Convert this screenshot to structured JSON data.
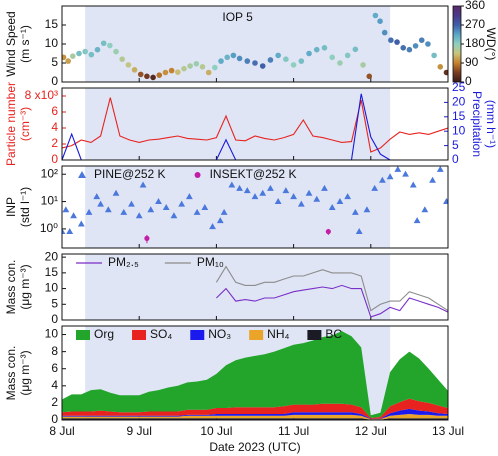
{
  "chart_data": [
    {
      "type": "scatter",
      "annotation": "IOP 5",
      "ylabel": [
        "Wind Speed",
        "(m s⁻¹)"
      ],
      "xlim": [
        8,
        13
      ],
      "ylim": [
        0,
        20
      ],
      "yticks": [
        0,
        5,
        10,
        15
      ],
      "highlight": [
        8.3,
        12.25
      ],
      "x": [
        8.02,
        8.08,
        8.14,
        8.22,
        8.3,
        8.38,
        8.46,
        8.54,
        8.62,
        8.7,
        8.78,
        8.86,
        8.94,
        9.02,
        9.1,
        9.18,
        9.26,
        9.34,
        9.42,
        9.5,
        9.58,
        9.66,
        9.74,
        9.82,
        9.9,
        9.98,
        10.06,
        10.14,
        10.22,
        10.3,
        10.4,
        10.5,
        10.6,
        10.7,
        10.8,
        10.9,
        11.0,
        11.1,
        11.2,
        11.3,
        11.4,
        11.5,
        11.6,
        11.7,
        11.8,
        11.9,
        11.98,
        12.06,
        12.12,
        12.18,
        12.26,
        12.34,
        12.42,
        12.5,
        12.58,
        12.66,
        12.74,
        12.82,
        12.9,
        12.98
      ],
      "values": [
        6.5,
        5.5,
        6.8,
        7.5,
        8.0,
        7.2,
        8.5,
        10.2,
        9.6,
        8.0,
        6.0,
        4.5,
        3.2,
        2.0,
        1.5,
        1.2,
        1.8,
        2.5,
        3.0,
        2.6,
        3.5,
        4.2,
        4.8,
        4.0,
        2.5,
        3.8,
        5.5,
        6.5,
        7.0,
        6.2,
        5.5,
        5.0,
        4.2,
        5.8,
        7.0,
        6.0,
        4.5,
        5.5,
        7.5,
        8.5,
        9.0,
        6.5,
        5.0,
        7.0,
        8.6,
        4.5,
        1.5,
        17.5,
        16.0,
        13.0,
        11.0,
        10.5,
        9.0,
        8.5,
        9.5,
        11.0,
        10.0,
        7.0,
        4.0,
        2.5
      ],
      "color_values": [
        100,
        110,
        160,
        200,
        190,
        200,
        210,
        200,
        180,
        170,
        150,
        140,
        120,
        60,
        40,
        20,
        80,
        100,
        90,
        130,
        150,
        160,
        170,
        150,
        120,
        180,
        220,
        210,
        230,
        240,
        250,
        260,
        270,
        250,
        220,
        190,
        180,
        200,
        220,
        210,
        200,
        180,
        170,
        190,
        200,
        160,
        60,
        220,
        230,
        240,
        260,
        270,
        260,
        250,
        240,
        250,
        240,
        200,
        100,
        30
      ],
      "colormap": [
        "#3a1a1a",
        "#7a3b22",
        "#c4822e",
        "#c9c47a",
        "#8fcfc0",
        "#5aa6c8",
        "#3f5fa8",
        "#4a3a8a",
        "#5a2a6a"
      ],
      "color_lim": [
        0,
        360
      ],
      "color_ticks": [
        0,
        90,
        180,
        270,
        360
      ],
      "color_label": "WD(°)"
    },
    {
      "type": "line",
      "ylabel": [
        "Particle number",
        "(cm⁻³)"
      ],
      "y2label": [
        "Precipitation",
        "(mm h⁻¹)"
      ],
      "xlim": [
        8,
        13
      ],
      "ylim": [
        0,
        9000
      ],
      "yticks": [
        0,
        {
          "value": 2000,
          "label": "2"
        },
        {
          "value": 4000,
          "label": "4"
        },
        {
          "value": 6000,
          "label": "6"
        },
        {
          "value": 8000,
          "label": "8 x10³"
        }
      ],
      "y2lim": [
        0,
        25
      ],
      "y2ticks": [
        0,
        5,
        10,
        15,
        20,
        25
      ],
      "highlight": [
        8.3,
        12.25
      ],
      "x": [
        8,
        8.125,
        8.25,
        8.375,
        8.5,
        8.625,
        8.75,
        8.875,
        9,
        9.125,
        9.25,
        9.375,
        9.5,
        9.625,
        9.75,
        9.875,
        10,
        10.125,
        10.25,
        10.375,
        10.5,
        10.625,
        10.75,
        10.875,
        11,
        11.125,
        11.25,
        11.375,
        11.5,
        11.625,
        11.75,
        11.875,
        12,
        12.125,
        12.25,
        12.375,
        12.5,
        12.625,
        12.75,
        12.875,
        13
      ],
      "series": [
        {
          "color": "#e8231f",
          "values": [
            1500,
            1800,
            2500,
            2200,
            3000,
            7800,
            3000,
            2500,
            2200,
            2500,
            2600,
            2800,
            3000,
            2700,
            2600,
            2500,
            2800,
            5500,
            2500,
            2400,
            3000,
            2700,
            2500,
            2800,
            3200,
            5000,
            3000,
            2800,
            2500,
            2200,
            2300,
            7500,
            1000,
            1500,
            2600,
            3500,
            3200,
            3400,
            3200,
            3600,
            4000
          ]
        },
        {
          "color": "#1a1adc",
          "axis": "y2",
          "values": [
            0,
            9,
            0,
            0,
            0,
            0,
            0,
            0,
            0,
            0,
            0,
            0,
            0,
            0,
            0,
            0,
            0,
            7,
            0,
            0,
            0,
            0,
            0,
            0,
            0,
            0,
            0,
            0,
            0,
            0,
            0,
            23,
            8,
            2,
            0,
            0,
            0,
            0,
            0,
            0,
            0
          ]
        }
      ]
    },
    {
      "type": "scatter",
      "ylabel": [
        "INP",
        "(std l⁻¹)"
      ],
      "log_y": true,
      "legend": true,
      "xlim": [
        8,
        13
      ],
      "ylim": [
        0.2,
        200
      ],
      "yticks": [
        {
          "value": 1,
          "label": "10⁰"
        },
        {
          "value": 10,
          "label": "10¹"
        },
        {
          "value": 100,
          "label": "10²"
        }
      ],
      "highlight": [
        8.3,
        12.25
      ],
      "series": [
        {
          "name": "PINE@252 K",
          "color": "#4b78dc",
          "marker": "triangle",
          "x": [
            8.0,
            8.05,
            8.1,
            8.15,
            8.25,
            8.35,
            8.45,
            8.5,
            8.6,
            8.7,
            8.8,
            8.9,
            9.0,
            9.05,
            9.15,
            9.25,
            9.35,
            9.45,
            9.55,
            9.65,
            9.75,
            9.85,
            9.95,
            10.05,
            10.1,
            10.2,
            10.3,
            10.4,
            10.5,
            10.6,
            10.7,
            10.8,
            10.9,
            11.0,
            11.1,
            11.2,
            11.3,
            11.4,
            11.5,
            11.6,
            11.7,
            11.8,
            11.85,
            11.95,
            12.05,
            12.15,
            12.25,
            12.35,
            12.45,
            12.55,
            12.6,
            12.7,
            12.8,
            12.9,
            12.98
          ],
          "values": [
            0.8,
            5,
            0.8,
            3,
            1.5,
            4,
            15,
            8,
            5,
            20,
            4,
            8,
            3,
            40,
            5,
            10,
            6,
            3,
            8,
            15,
            4,
            6,
            1.2,
            2,
            4,
            40,
            30,
            25,
            15,
            20,
            30,
            10,
            25,
            15,
            8,
            20,
            12,
            30,
            6,
            10,
            15,
            4,
            0.8,
            5,
            30,
            60,
            80,
            150,
            100,
            40,
            2,
            5,
            60,
            150,
            10
          ]
        },
        {
          "name": "INSEKT@252 K",
          "color": "#c21fa6",
          "marker": "circle",
          "x": [
            9.1,
            11.45
          ],
          "values": [
            0.45,
            0.8
          ],
          "errors": [
            0.15,
            0.2
          ]
        }
      ]
    },
    {
      "type": "line",
      "ylabel": [
        "Mass con.",
        "(μg m⁻³)"
      ],
      "legend": true,
      "xlim": [
        8,
        13
      ],
      "ylim": [
        0,
        21
      ],
      "yticks": [
        0,
        5,
        10,
        15,
        20
      ],
      "highlight": [
        8.3,
        12.25
      ],
      "x": [
        8,
        8.125,
        8.25,
        8.375,
        8.5,
        8.625,
        8.75,
        8.875,
        9,
        9.125,
        9.25,
        9.375,
        9.5,
        9.625,
        9.75,
        9.875,
        10,
        10.125,
        10.25,
        10.375,
        10.5,
        10.625,
        10.75,
        10.875,
        11,
        11.125,
        11.25,
        11.375,
        11.5,
        11.625,
        11.75,
        11.875,
        12,
        12.125,
        12.25,
        12.375,
        12.5,
        12.625,
        12.75,
        12.875,
        13
      ],
      "series": [
        {
          "name": "PM₂.₅",
          "color": "#7a2fc8",
          "values": [
            null,
            null,
            null,
            null,
            null,
            null,
            null,
            null,
            null,
            null,
            null,
            null,
            null,
            null,
            null,
            null,
            7,
            10,
            6,
            6.5,
            6,
            7,
            7,
            8,
            9,
            9.5,
            10,
            10.5,
            10,
            11,
            10,
            10,
            1,
            2,
            4,
            3,
            7,
            6,
            5,
            4,
            2.5
          ]
        },
        {
          "name": "PM₁₀",
          "color": "#8c8c8c",
          "values": [
            null,
            null,
            null,
            null,
            null,
            null,
            null,
            null,
            null,
            null,
            null,
            null,
            null,
            null,
            null,
            null,
            12,
            17,
            12,
            11,
            11,
            12,
            12,
            13,
            14,
            14,
            15,
            16,
            15,
            15,
            15,
            14,
            3,
            5,
            6,
            6,
            9,
            8,
            7,
            5,
            3
          ]
        }
      ]
    },
    {
      "type": "stacked_area",
      "ylabel": [
        "Mass con.",
        "(μg m⁻³)"
      ],
      "xlabel": "Date 2023 (UTC)",
      "legend": true,
      "xlim": [
        8,
        13
      ],
      "ylim": [
        0,
        11
      ],
      "yticks": [
        0,
        2,
        4,
        6,
        8,
        10
      ],
      "highlight": [
        8.3,
        12.25
      ],
      "xticks": [
        {
          "value": 8,
          "label": "8 Jul"
        },
        {
          "value": 9,
          "label": "9 Jul"
        },
        {
          "value": 10,
          "label": "10 Jul"
        },
        {
          "value": 11,
          "label": "11 Jul"
        },
        {
          "value": 12,
          "label": "12 Jul"
        },
        {
          "value": 13,
          "label": "13 Jul"
        }
      ],
      "x": [
        8,
        8.125,
        8.25,
        8.375,
        8.5,
        8.625,
        8.75,
        8.875,
        9,
        9.125,
        9.25,
        9.375,
        9.5,
        9.625,
        9.75,
        9.875,
        10,
        10.125,
        10.25,
        10.375,
        10.5,
        10.625,
        10.75,
        10.875,
        11,
        11.125,
        11.25,
        11.375,
        11.5,
        11.625,
        11.75,
        11.875,
        12,
        12.125,
        12.25,
        12.375,
        12.5,
        12.625,
        12.75,
        12.875,
        13
      ],
      "series": [
        {
          "name": "Org",
          "color": "#22a52a",
          "values": [
            1.5,
            2,
            2,
            2.5,
            2.5,
            2.2,
            2,
            2,
            2,
            2.3,
            2.5,
            2.8,
            3,
            3.2,
            3.3,
            3.5,
            4,
            5,
            5.5,
            5.8,
            6,
            6.2,
            6.5,
            6.8,
            7,
            7.2,
            7.5,
            7.8,
            8,
            8.5,
            8,
            7,
            0.3,
            0.5,
            4,
            5,
            5.5,
            5,
            4,
            3,
            2
          ]
        },
        {
          "name": "SO₄",
          "color": "#e8231f",
          "values": [
            0.4,
            0.5,
            0.5,
            0.5,
            0.6,
            0.5,
            0.4,
            0.4,
            0.4,
            0.5,
            0.5,
            0.5,
            0.5,
            0.6,
            0.6,
            0.6,
            0.7,
            0.7,
            0.8,
            0.8,
            0.8,
            0.8,
            0.8,
            0.9,
            0.9,
            0.9,
            0.9,
            1.0,
            1.0,
            1.0,
            0.9,
            0.8,
            0.1,
            0.2,
            0.8,
            1.0,
            1.2,
            1.1,
            1.0,
            0.9,
            0.7
          ]
        },
        {
          "name": "NO₃",
          "color": "#1a1aee",
          "values": [
            0.1,
            0.1,
            0.1,
            0.1,
            0.1,
            0.1,
            0.1,
            0.1,
            0.1,
            0.1,
            0.1,
            0.1,
            0.1,
            0.1,
            0.1,
            0.1,
            0.2,
            0.2,
            0.2,
            0.2,
            0.2,
            0.2,
            0.2,
            0.2,
            0.3,
            0.3,
            0.3,
            0.3,
            0.3,
            0.3,
            0.3,
            0.2,
            0.05,
            0.05,
            0.3,
            0.5,
            0.6,
            0.5,
            0.4,
            0.3,
            0.2
          ]
        },
        {
          "name": "NH₄",
          "color": "#eba42a",
          "values": [
            0.2,
            0.2,
            0.2,
            0.2,
            0.2,
            0.2,
            0.2,
            0.2,
            0.2,
            0.2,
            0.2,
            0.2,
            0.2,
            0.3,
            0.3,
            0.3,
            0.3,
            0.3,
            0.3,
            0.3,
            0.3,
            0.3,
            0.3,
            0.3,
            0.4,
            0.4,
            0.4,
            0.4,
            0.4,
            0.4,
            0.4,
            0.3,
            0.05,
            0.05,
            0.3,
            0.4,
            0.5,
            0.4,
            0.4,
            0.3,
            0.3
          ]
        },
        {
          "name": "BC",
          "color": "#1b1b25",
          "values": [
            0.2,
            0.2,
            0.2,
            0.2,
            0.2,
            0.2,
            0.2,
            0.2,
            0.2,
            0.2,
            0.2,
            0.2,
            0.2,
            0.2,
            0.2,
            0.2,
            0.2,
            0.2,
            0.2,
            0.2,
            0.2,
            0.2,
            0.2,
            0.2,
            0.2,
            0.2,
            0.2,
            0.2,
            0.2,
            0.2,
            0.2,
            0.2,
            0.05,
            0.05,
            0.2,
            0.2,
            0.2,
            0.2,
            0.2,
            0.2,
            0.2
          ]
        }
      ]
    }
  ]
}
